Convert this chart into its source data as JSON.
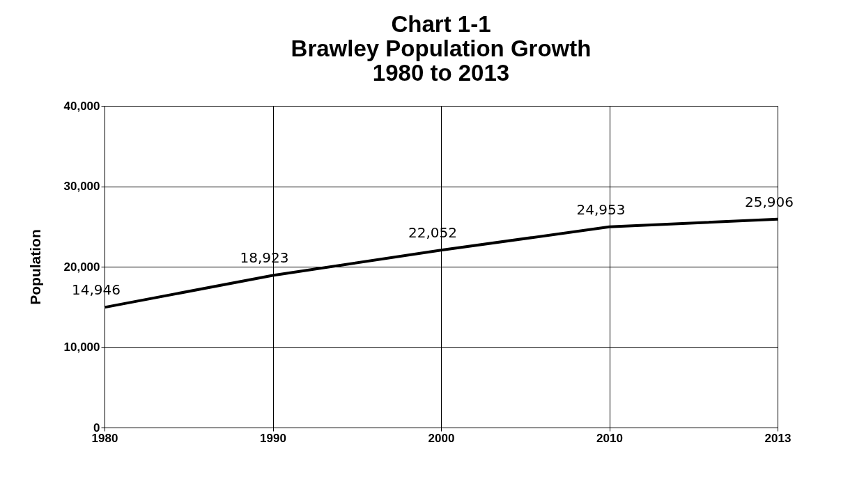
{
  "chart_data": {
    "type": "line",
    "title": [
      "Chart 1-1",
      "Brawley Population Growth",
      "1980 to 2013"
    ],
    "ylabel": "Population",
    "categories": [
      "1980",
      "1990",
      "2000",
      "2010",
      "2013"
    ],
    "series": [
      {
        "color": "#000000",
        "values": [
          14946,
          18923,
          22052,
          24953,
          25906
        ]
      }
    ],
    "value_labels": [
      "14,946",
      "18,923",
      "22,052",
      "24,953",
      "25,906"
    ],
    "ylim": [
      0,
      40000
    ],
    "yticks": [
      0,
      {
        "value": 10000,
        "label": "10,000"
      },
      {
        "value": 20000,
        "label": "20,000"
      },
      {
        "value": 30000,
        "label": "30,000"
      },
      {
        "value": 40000,
        "label": "40,000"
      }
    ],
    "grid": true,
    "marker": "none",
    "line_style": "solid"
  }
}
